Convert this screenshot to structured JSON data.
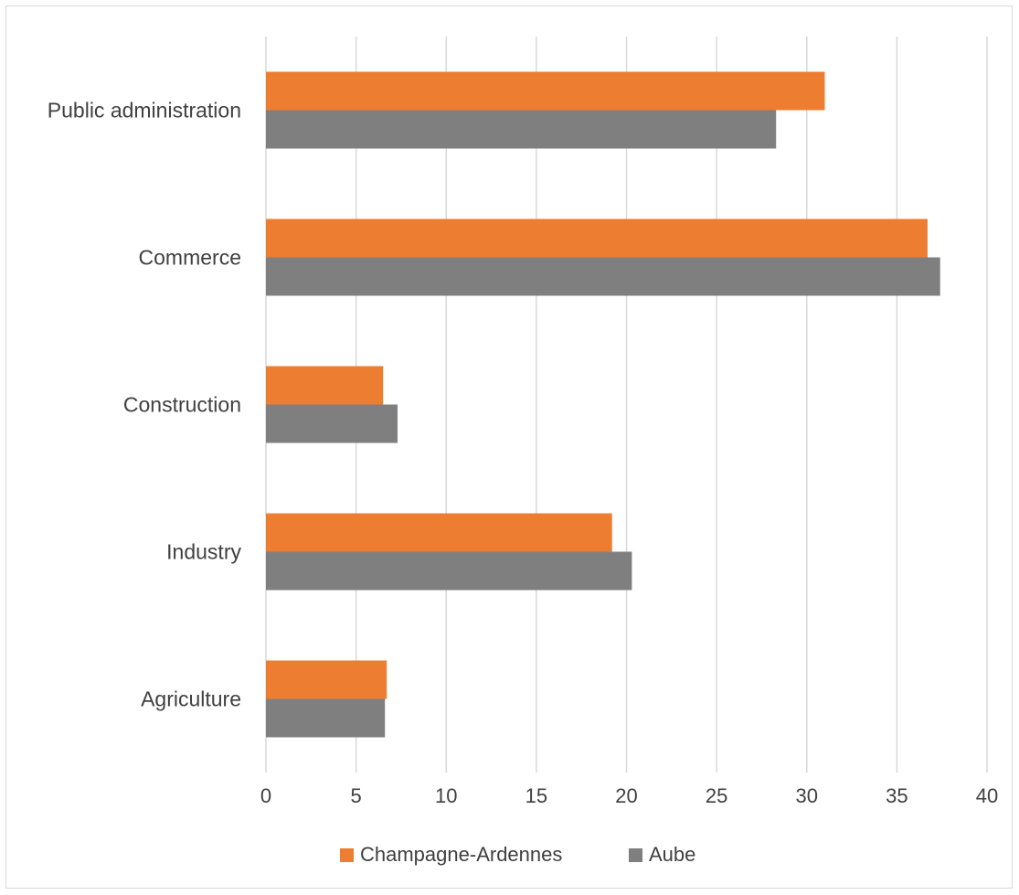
{
  "chart_data": {
    "type": "bar",
    "orientation": "horizontal",
    "title": "",
    "xlabel": "",
    "ylabel": "",
    "categories": [
      "Public administration",
      "Commerce",
      "Construction",
      "Industry",
      "Agriculture"
    ],
    "series": [
      {
        "name": "Champagne-Ardennes",
        "color": "#ed7d31",
        "values": [
          31.0,
          36.7,
          6.5,
          19.2,
          6.7
        ]
      },
      {
        "name": "Aube",
        "color": "#7f7f7f",
        "values": [
          28.3,
          37.4,
          7.3,
          20.3,
          6.6
        ]
      }
    ],
    "xlim": [
      0,
      40
    ],
    "xticks": [
      "0",
      "5",
      "10",
      "15",
      "20",
      "25",
      "30",
      "35",
      "40"
    ],
    "grid": true,
    "legend": "bottom"
  }
}
